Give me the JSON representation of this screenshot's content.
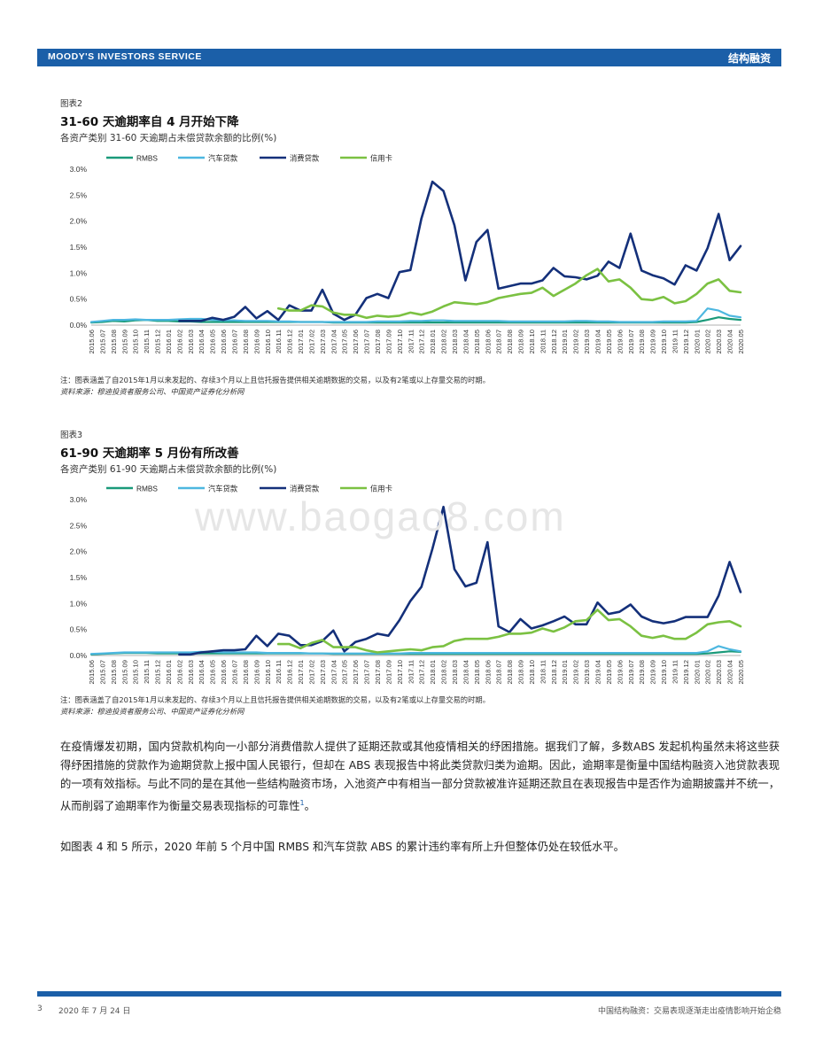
{
  "header": {
    "left": "MOODY'S INVESTORS SERVICE",
    "right": "结构融资"
  },
  "figures": [
    {
      "label": "图表2",
      "title": "31-60 天逾期率自 4 月开始下降",
      "subtitle": "各资产类别 31-60 天逾期占未偿贷款余额的比例(%)",
      "note": "注：图表涵盖了自2015年1月以来发起的、存续3个月以上且信托报告提供相关逾期数据的交易，以及有2笔或以上存量交易的时期。",
      "source": "资料来源：穆迪投资者服务公司、中国资产证券化分析网"
    },
    {
      "label": "图表3",
      "title": "61-90 天逾期率 5 月份有所改善",
      "subtitle": "各资产类别 61-90 天逾期占未偿贷款余额的比例(%)",
      "note": "注：图表涵盖了自2015年1月以来发起的、存续3个月以上且信托报告提供相关逾期数据的交易，以及有2笔或以上存量交易的时期。",
      "source": "资料来源：穆迪投资者服务公司、中国资产证券化分析网"
    }
  ],
  "chart_data": [
    {
      "type": "line",
      "title": "31-60 天逾期率自 4 月开始下降",
      "ylim": [
        0,
        3.0
      ],
      "yticks": [
        "0.0%",
        "0.5%",
        "1.0%",
        "1.5%",
        "2.0%",
        "2.5%",
        "3.0%"
      ],
      "tick_values": [
        0,
        0.5,
        1.0,
        1.5,
        2.0,
        2.5,
        3.0
      ],
      "categories": [
        "2015.06",
        "2015.07",
        "2015.08",
        "2015.09",
        "2015.10",
        "2015.11",
        "2015.12",
        "2016.01",
        "2016.02",
        "2016.03",
        "2016.04",
        "2016.05",
        "2016.06",
        "2016.07",
        "2016.08",
        "2016.09",
        "2016.10",
        "2016.11",
        "2016.12",
        "2017.01",
        "2017.02",
        "2017.03",
        "2017.04",
        "2017.05",
        "2017.06",
        "2017.07",
        "2017.08",
        "2017.09",
        "2017.10",
        "2017.11",
        "2017.12",
        "2018.01",
        "2018.02",
        "2018.03",
        "2018.04",
        "2018.05",
        "2018.06",
        "2018.07",
        "2018.08",
        "2018.09",
        "2018.10",
        "2018.11",
        "2018.12",
        "2019.01",
        "2019.02",
        "2019.03",
        "2019.04",
        "2019.05",
        "2019.06",
        "2019.07",
        "2019.08",
        "2019.09",
        "2019.10",
        "2019.11",
        "2019.12",
        "2020.01",
        "2020.02",
        "2020.03",
        "2020.04",
        "2020.05"
      ],
      "legend_position": "top",
      "series": [
        {
          "name": "RMBS",
          "color": "#1a9a7a",
          "values": [
            0.05,
            0.06,
            0.08,
            0.07,
            0.09,
            0.1,
            0.08,
            0.08,
            0.07,
            0.07,
            0.06,
            0.06,
            0.06,
            0.06,
            0.06,
            0.06,
            0.06,
            0.06,
            0.06,
            0.06,
            0.06,
            0.06,
            0.05,
            0.05,
            0.05,
            0.05,
            0.05,
            0.05,
            0.05,
            0.05,
            0.05,
            0.05,
            0.05,
            0.05,
            0.05,
            0.05,
            0.05,
            0.05,
            0.05,
            0.05,
            0.05,
            0.05,
            0.05,
            0.05,
            0.05,
            0.05,
            0.05,
            0.05,
            0.05,
            0.05,
            0.05,
            0.05,
            0.05,
            0.05,
            0.05,
            0.06,
            0.1,
            0.15,
            0.12,
            0.1
          ]
        },
        {
          "name": "汽车贷款",
          "color": "#4db7e0",
          "values": [
            0.06,
            0.08,
            0.1,
            0.1,
            0.11,
            0.1,
            0.1,
            0.1,
            0.11,
            0.12,
            0.12,
            0.1,
            0.09,
            0.09,
            0.08,
            0.08,
            0.08,
            0.07,
            0.07,
            0.06,
            0.06,
            0.06,
            0.06,
            0.06,
            0.06,
            0.06,
            0.07,
            0.07,
            0.07,
            0.08,
            0.08,
            0.09,
            0.09,
            0.08,
            0.08,
            0.08,
            0.08,
            0.08,
            0.07,
            0.07,
            0.07,
            0.07,
            0.07,
            0.07,
            0.08,
            0.08,
            0.07,
            0.07,
            0.06,
            0.06,
            0.06,
            0.06,
            0.07,
            0.07,
            0.07,
            0.08,
            0.32,
            0.28,
            0.18,
            0.15
          ]
        },
        {
          "name": "消费贷款",
          "color": "#14307a",
          "values": [
            null,
            null,
            null,
            null,
            null,
            null,
            null,
            null,
            0.08,
            0.08,
            0.08,
            0.14,
            0.1,
            0.16,
            0.35,
            0.13,
            0.27,
            0.1,
            0.38,
            0.28,
            0.28,
            0.68,
            0.22,
            0.1,
            0.2,
            0.52,
            0.6,
            0.52,
            1.02,
            1.06,
            2.05,
            2.76,
            2.58,
            1.92,
            0.86,
            1.6,
            1.83,
            0.7,
            0.75,
            0.8,
            0.8,
            0.86,
            1.1,
            0.94,
            0.92,
            0.88,
            0.95,
            1.22,
            1.1,
            1.76,
            1.05,
            0.96,
            0.9,
            0.78,
            1.15,
            1.05,
            1.48,
            2.14,
            1.25,
            1.52
          ]
        },
        {
          "name": "信用卡",
          "color": "#7bc142",
          "values": [
            null,
            null,
            null,
            null,
            null,
            null,
            null,
            null,
            null,
            null,
            null,
            null,
            null,
            null,
            null,
            null,
            null,
            0.32,
            0.28,
            0.28,
            0.38,
            0.36,
            0.24,
            0.2,
            0.2,
            0.14,
            0.18,
            0.16,
            0.18,
            0.24,
            0.2,
            0.26,
            0.36,
            0.44,
            0.42,
            0.4,
            0.44,
            0.52,
            0.56,
            0.6,
            0.62,
            0.72,
            0.56,
            0.68,
            0.8,
            0.96,
            1.08,
            0.84,
            0.88,
            0.72,
            0.5,
            0.48,
            0.54,
            0.42,
            0.46,
            0.6,
            0.8,
            0.88,
            0.66,
            0.63
          ]
        }
      ]
    },
    {
      "type": "line",
      "title": "61-90 天逾期率 5 月份有所改善",
      "ylim": [
        0,
        3.0
      ],
      "yticks": [
        "0.0%",
        "0.5%",
        "1.0%",
        "1.5%",
        "2.0%",
        "2.5%",
        "3.0%"
      ],
      "tick_values": [
        0,
        0.5,
        1.0,
        1.5,
        2.0,
        2.5,
        3.0
      ],
      "categories": [
        "2015.06",
        "2015.07",
        "2015.08",
        "2015.09",
        "2015.10",
        "2015.11",
        "2015.12",
        "2016.01",
        "2016.02",
        "2016.03",
        "2016.04",
        "2016.05",
        "2016.06",
        "2016.07",
        "2016.08",
        "2016.09",
        "2016.10",
        "2016.11",
        "2016.12",
        "2017.01",
        "2017.02",
        "2017.03",
        "2017.04",
        "2017.05",
        "2017.06",
        "2017.07",
        "2017.08",
        "2017.09",
        "2017.10",
        "2017.11",
        "2017.12",
        "2018.01",
        "2018.02",
        "2018.03",
        "2018.04",
        "2018.05",
        "2018.06",
        "2018.07",
        "2018.08",
        "2018.09",
        "2018.10",
        "2018.11",
        "2018.12",
        "2019.01",
        "2019.02",
        "2019.03",
        "2019.04",
        "2019.05",
        "2019.06",
        "2019.07",
        "2019.08",
        "2019.09",
        "2019.10",
        "2019.11",
        "2019.12",
        "2020.01",
        "2020.02",
        "2020.03",
        "2020.04",
        "2020.05"
      ],
      "legend_position": "top",
      "series": [
        {
          "name": "RMBS",
          "color": "#1a9a7a",
          "values": [
            0.02,
            0.03,
            0.04,
            0.05,
            0.05,
            0.05,
            0.04,
            0.04,
            0.04,
            0.04,
            0.04,
            0.04,
            0.04,
            0.04,
            0.04,
            0.04,
            0.04,
            0.04,
            0.04,
            0.04,
            0.04,
            0.04,
            0.03,
            0.03,
            0.03,
            0.03,
            0.03,
            0.03,
            0.03,
            0.03,
            0.03,
            0.03,
            0.03,
            0.03,
            0.03,
            0.03,
            0.03,
            0.03,
            0.03,
            0.03,
            0.03,
            0.03,
            0.03,
            0.03,
            0.03,
            0.03,
            0.03,
            0.03,
            0.03,
            0.03,
            0.03,
            0.03,
            0.03,
            0.03,
            0.03,
            0.03,
            0.04,
            0.06,
            0.08,
            0.07
          ]
        },
        {
          "name": "汽车贷款",
          "color": "#4db7e0",
          "values": [
            0.03,
            0.04,
            0.05,
            0.06,
            0.06,
            0.06,
            0.06,
            0.06,
            0.06,
            0.06,
            0.07,
            0.07,
            0.06,
            0.06,
            0.06,
            0.06,
            0.05,
            0.05,
            0.05,
            0.05,
            0.04,
            0.04,
            0.04,
            0.04,
            0.04,
            0.04,
            0.04,
            0.04,
            0.04,
            0.05,
            0.05,
            0.05,
            0.05,
            0.05,
            0.05,
            0.05,
            0.05,
            0.05,
            0.05,
            0.05,
            0.05,
            0.05,
            0.05,
            0.05,
            0.05,
            0.05,
            0.05,
            0.05,
            0.05,
            0.05,
            0.05,
            0.05,
            0.05,
            0.05,
            0.05,
            0.05,
            0.08,
            0.18,
            0.12,
            0.08
          ]
        },
        {
          "name": "消费贷款",
          "color": "#14307a",
          "values": [
            null,
            null,
            null,
            null,
            null,
            null,
            null,
            null,
            0.02,
            0.02,
            0.06,
            0.08,
            0.1,
            0.1,
            0.12,
            0.38,
            0.18,
            0.42,
            0.38,
            0.2,
            0.2,
            0.28,
            0.48,
            0.08,
            0.26,
            0.32,
            0.42,
            0.38,
            0.68,
            1.05,
            1.32,
            2.05,
            2.86,
            1.66,
            1.33,
            1.4,
            2.18,
            0.56,
            0.45,
            0.7,
            0.52,
            0.58,
            0.66,
            0.75,
            0.6,
            0.6,
            1.02,
            0.8,
            0.84,
            0.98,
            0.75,
            0.66,
            0.62,
            0.66,
            0.74,
            0.74,
            0.74,
            1.15,
            1.8,
            1.22
          ]
        },
        {
          "name": "信用卡",
          "color": "#7bc142",
          "values": [
            null,
            null,
            null,
            null,
            null,
            null,
            null,
            null,
            null,
            null,
            null,
            null,
            null,
            null,
            null,
            null,
            null,
            0.22,
            0.22,
            0.14,
            0.24,
            0.3,
            0.16,
            0.16,
            0.16,
            0.1,
            0.06,
            0.08,
            0.1,
            0.12,
            0.1,
            0.16,
            0.18,
            0.28,
            0.32,
            0.32,
            0.32,
            0.36,
            0.42,
            0.42,
            0.44,
            0.52,
            0.46,
            0.54,
            0.66,
            0.68,
            0.88,
            0.68,
            0.7,
            0.56,
            0.38,
            0.34,
            0.38,
            0.32,
            0.32,
            0.44,
            0.6,
            0.64,
            0.66,
            0.56
          ]
        }
      ]
    }
  ],
  "body": {
    "para1": "在疫情爆发初期，国内贷款机构向一小部分消费借款人提供了延期还款或其他疫情相关的纾困措施。据我们了解，多数ABS 发起机构虽然未将这些获得纾困措施的贷款作为逾期贷款上报中国人民银行，但却在 ABS 表现报告中将此类贷款归类为逾期。因此，逾期率是衡量中国结构融资入池贷款表现的一项有效指标。与此不同的是在其他一些结构融资市场，入池资产中有相当一部分贷款被准许延期还款且在表现报告中是否作为逾期披露并不统一，从而削弱了逾期率作为衡量交易表现指标的可靠性",
    "footnote_ref": "1",
    "para1_end": "。",
    "para2": "如图表 4 和 5 所示，2020 年前 5 个月中国 RMBS 和汽车贷款 ABS 的累计违约率有所上升但整体仍处在较低水平。"
  },
  "watermark": "www.baogao8.com",
  "footer": {
    "page": "3",
    "date": "2020 年 7 月 24 日",
    "title": "中国结构融资：交易表现逐渐走出疫情影响开始企稳"
  }
}
